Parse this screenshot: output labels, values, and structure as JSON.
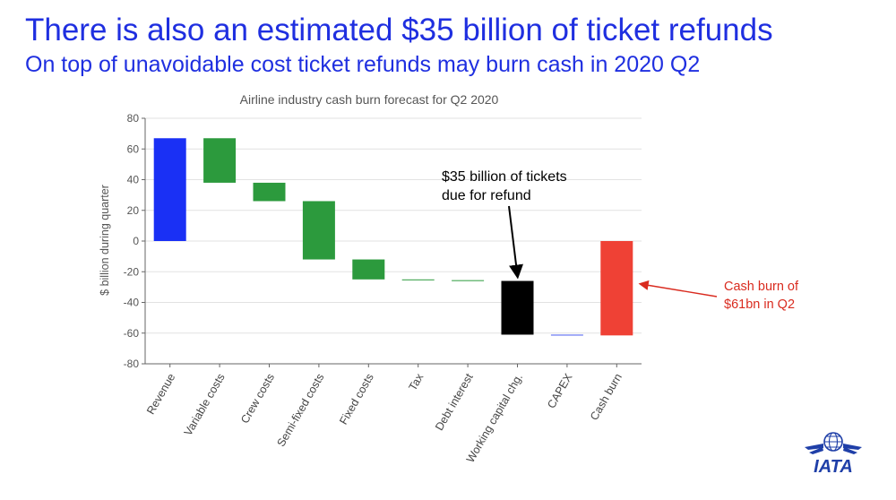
{
  "slide": {
    "headline": "There is also an estimated $35 billion of ticket refunds",
    "subheadline": "On top of unavoidable cost ticket refunds may burn cash in 2020 Q2"
  },
  "chart_data": {
    "type": "bar",
    "subtype": "waterfall",
    "title": "Airline industry cash burn forecast for Q2 2020",
    "xlabel": "",
    "ylabel": "$ billion during quarter",
    "ylim": [
      -80,
      80
    ],
    "yticks": [
      80,
      60,
      40,
      20,
      0,
      -20,
      -40,
      -60,
      -80
    ],
    "grid": true,
    "categories": [
      "Revenue",
      "Variable costs",
      "Crew costs",
      "Semi-fixed costs",
      "Fixed costs",
      "Tax",
      "Debt interest",
      "Working capital chg.",
      "CAPEX",
      "Cash burn"
    ],
    "bars": [
      {
        "category": "Revenue",
        "start": 0,
        "end": 67,
        "color": "#1a30f5"
      },
      {
        "category": "Variable costs",
        "start": 67,
        "end": 38,
        "color": "#2c9a3d"
      },
      {
        "category": "Crew costs",
        "start": 38,
        "end": 26,
        "color": "#2c9a3d"
      },
      {
        "category": "Semi-fixed costs",
        "start": 26,
        "end": -12,
        "color": "#2c9a3d"
      },
      {
        "category": "Fixed costs",
        "start": -12,
        "end": -25,
        "color": "#2c9a3d"
      },
      {
        "category": "Tax",
        "start": -25,
        "end": -25.5,
        "color": "#2c9a3d"
      },
      {
        "category": "Debt interest",
        "start": -25.5,
        "end": -26,
        "color": "#2c9a3d"
      },
      {
        "category": "Working capital chg.",
        "start": -26,
        "end": -61,
        "color": "#000000"
      },
      {
        "category": "CAPEX",
        "start": -61,
        "end": -61.5,
        "color": "#4a5cf0"
      },
      {
        "category": "Cash burn",
        "start": 0,
        "end": -61.5,
        "color": "#ef4135"
      }
    ],
    "annotations": [
      {
        "lines": [
          "$35 billion of tickets",
          "due for refund"
        ],
        "points_to": "Working capital chg.",
        "color": "#000000"
      },
      {
        "lines": [
          "Cash burn of",
          "$61bn in Q2"
        ],
        "points_to": "Cash burn",
        "color": "#d92b1f"
      }
    ]
  },
  "logo": {
    "text": "IATA",
    "icon": "globe-wings-icon",
    "color": "#1f3fa8"
  }
}
